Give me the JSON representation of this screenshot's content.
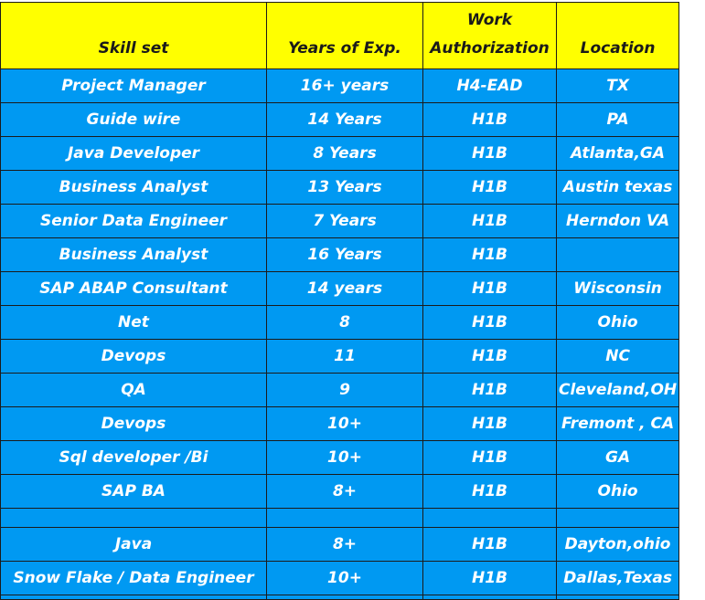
{
  "headers": {
    "skill": "Skill set",
    "years": "Years of Exp.",
    "auth_line1": "Work",
    "auth_line2": "Authorization",
    "location": "Location"
  },
  "rows": [
    {
      "skill": "Project Manager",
      "years": "16+ years",
      "auth": "H4-EAD",
      "location": "TX"
    },
    {
      "skill": "Guide wire",
      "years": "14 Years",
      "auth": "H1B",
      "location": "PA"
    },
    {
      "skill": "Java Developer",
      "years": "8 Years",
      "auth": "H1B",
      "location": "Atlanta,GA"
    },
    {
      "skill": "Business Analyst",
      "years": "13 Years",
      "auth": "H1B",
      "location": "Austin texas"
    },
    {
      "skill": "Senior Data Engineer",
      "years": "7 Years",
      "auth": "H1B",
      "location": "Herndon VA"
    },
    {
      "skill": "Business Analyst",
      "years": "16 Years",
      "auth": "H1B",
      "location": ""
    },
    {
      "skill": "SAP ABAP Consultant",
      "years": "14 years",
      "auth": "H1B",
      "location": "Wisconsin"
    },
    {
      "skill": "Net",
      "years": "8",
      "auth": "H1B",
      "location": "Ohio"
    },
    {
      "skill": "Devops",
      "years": "11",
      "auth": "H1B",
      "location": "NC"
    },
    {
      "skill": "QA",
      "years": "9",
      "auth": "H1B",
      "location": "Cleveland,OH"
    },
    {
      "skill": "Devops",
      "years": "10+",
      "auth": "H1B",
      "location": "Fremont , CA"
    },
    {
      "skill": "Sql developer /Bi",
      "years": "10+",
      "auth": "H1B",
      "location": "GA"
    },
    {
      "skill": "SAP BA",
      "years": "8+",
      "auth": "H1B",
      "location": "Ohio"
    },
    {
      "skill": "",
      "years": "",
      "auth": "",
      "location": ""
    },
    {
      "skill": "Java",
      "years": "8+",
      "auth": "H1B",
      "location": "Dayton,ohio"
    },
    {
      "skill": "Snow Flake / Data Engineer",
      "years": "10+",
      "auth": "H1B",
      "location": "Dallas,Texas"
    },
    {
      "skill": "",
      "years": "",
      "auth": "",
      "location": ""
    }
  ],
  "colors": {
    "header_bg": "#ffff00",
    "row_bg": "#0099f2",
    "row_text": "#ffffff",
    "border": "#1b1b1b"
  }
}
